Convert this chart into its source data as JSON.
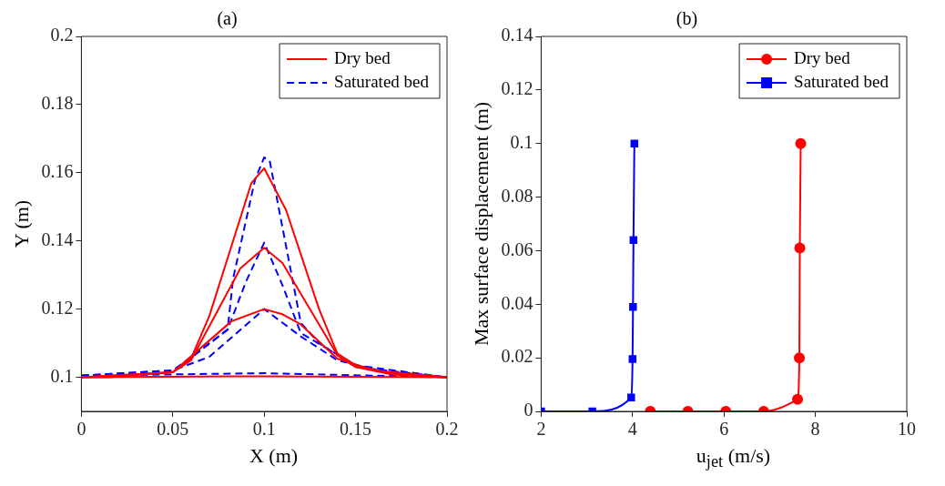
{
  "chart_data": [
    {
      "type": "line",
      "title": "(a)",
      "xlabel": "X (m)",
      "ylabel": "Y (m)",
      "xlim": [
        0,
        0.2
      ],
      "xticks": [
        0,
        0.05,
        0.1,
        0.15,
        0.2
      ],
      "ylim": [
        0.09,
        0.2
      ],
      "yticks": [
        0.1,
        0.12,
        0.14,
        0.16,
        0.18,
        0.2
      ],
      "grid": false,
      "legend": "top right",
      "marker": "none",
      "series": [
        {
          "name": "Dry bed",
          "color": "#ff0000",
          "line_style": "solid",
          "x": [
            0,
            0.015,
            0.05,
            0.06,
            0.07,
            0.093,
            0.1,
            0.112,
            0.13,
            0.14,
            0.15,
            0.17,
            0.2
          ],
          "values": [
            0.1,
            0.1,
            0.1015,
            0.1055,
            0.118,
            0.157,
            0.1613,
            0.149,
            0.12,
            0.107,
            0.1035,
            0.101,
            0.1
          ]
        },
        {
          "color": "#ff0000",
          "line_style": "solid",
          "x": [
            0,
            0.05,
            0.06,
            0.087,
            0.1,
            0.11,
            0.14,
            0.15,
            0.17,
            0.2
          ],
          "values": [
            0.1,
            0.1015,
            0.105,
            0.132,
            0.138,
            0.1335,
            0.1065,
            0.103,
            0.1008,
            0.1
          ]
        },
        {
          "color": "#ff0000",
          "line_style": "solid",
          "x": [
            0,
            0.05,
            0.082,
            0.1,
            0.11,
            0.12,
            0.14,
            0.16,
            0.2
          ],
          "values": [
            0.1,
            0.1015,
            0.1164,
            0.12,
            0.1185,
            0.1155,
            0.1055,
            0.102,
            0.1
          ]
        },
        {
          "color": "#ff0000",
          "line_style": "solid",
          "x": [
            0,
            0.1,
            0.2
          ],
          "values": [
            0.1,
            0.1003,
            0.1
          ]
        },
        {
          "name": "Saturated bed",
          "color": "#0000ff",
          "line_style": "dashed",
          "x": [
            0,
            0.05,
            0.08,
            0.083,
            0.095,
            0.1,
            0.103,
            0.115,
            0.12,
            0.13,
            0.15,
            0.2
          ],
          "values": [
            0.1005,
            0.102,
            0.114,
            0.129,
            0.158,
            0.1645,
            0.1635,
            0.13,
            0.116,
            0.11,
            0.103,
            0.1
          ]
        },
        {
          "color": "#0000ff",
          "line_style": "dashed",
          "x": [
            0,
            0.05,
            0.08,
            0.09,
            0.1,
            0.11,
            0.12,
            0.15,
            0.2
          ],
          "values": [
            0.1005,
            0.1015,
            0.114,
            0.128,
            0.1395,
            0.127,
            0.113,
            0.1035,
            0.1
          ]
        },
        {
          "color": "#0000ff",
          "line_style": "dashed",
          "x": [
            0,
            0.05,
            0.07,
            0.1,
            0.12,
            0.14,
            0.17,
            0.2
          ],
          "values": [
            0.1005,
            0.102,
            0.106,
            0.12,
            0.112,
            0.105,
            0.101,
            0.1
          ]
        },
        {
          "color": "#0000ff",
          "line_style": "dashed",
          "x": [
            0,
            0.1,
            0.2
          ],
          "values": [
            0.1005,
            0.1012,
            0.1
          ]
        }
      ]
    },
    {
      "type": "line",
      "title": "(b)",
      "xlabel": "u$_{jet}$ (m/s)",
      "ylabel": "Max surface displacement (m)",
      "xlim": [
        2,
        10
      ],
      "xticks": [
        2,
        4,
        6,
        8,
        10
      ],
      "ylim": [
        0,
        0.14
      ],
      "yticks": [
        0,
        0.02,
        0.04,
        0.06,
        0.08,
        0.1,
        0.12,
        0.14
      ],
      "grid": false,
      "legend": "top right",
      "series": [
        {
          "name": "Dry bed",
          "color": "#ff0000",
          "marker": "circle",
          "line_style": "solid",
          "x": [
            4.39,
            5.21,
            6.04,
            6.87,
            7.61,
            7.65,
            7.66,
            7.68
          ],
          "values": [
            0,
            0,
            0,
            0,
            0.0045,
            0.02,
            0.061,
            0.1
          ]
        },
        {
          "name": "Saturated bed",
          "color": "#0000ff",
          "marker": "square",
          "line_style": "solid",
          "x": [
            2,
            3.12,
            3.97,
            4.0,
            4.01,
            4.02,
            4.04
          ],
          "values": [
            0,
            0,
            0.0052,
            0.0195,
            0.039,
            0.064,
            0.1
          ]
        }
      ]
    }
  ]
}
